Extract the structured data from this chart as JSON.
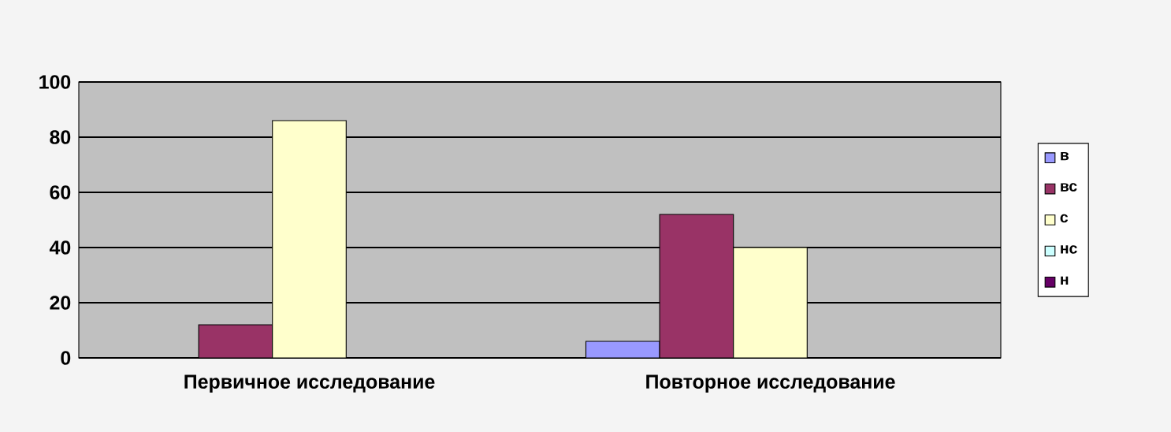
{
  "chart_data": {
    "type": "bar",
    "categories": [
      "Первичное исследование",
      "Повторное исследование"
    ],
    "series": [
      {
        "name": "в",
        "color": "#9999ff",
        "values": [
          0,
          6
        ]
      },
      {
        "name": "вс",
        "color": "#993366",
        "values": [
          12,
          52
        ]
      },
      {
        "name": "с",
        "color": "#ffffcc",
        "values": [
          86,
          40
        ]
      },
      {
        "name": "нс",
        "color": "#ccffff",
        "values": [
          0,
          0
        ]
      },
      {
        "name": "н",
        "color": "#660066",
        "values": [
          0,
          0
        ]
      }
    ],
    "ylim": [
      0,
      100
    ],
    "yticks": [
      0,
      20,
      40,
      60,
      80,
      100
    ],
    "grid": "y",
    "legend": "right"
  }
}
